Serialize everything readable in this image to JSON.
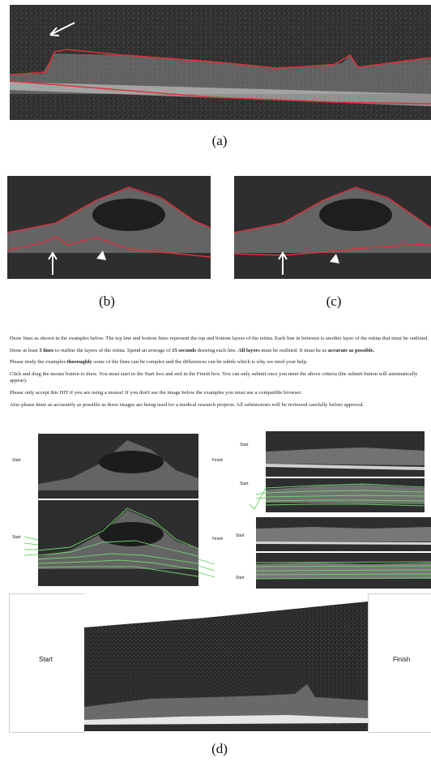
{
  "panels": {
    "a": {
      "caption": "(a)"
    },
    "b": {
      "caption": "(b)"
    },
    "c": {
      "caption": "(c)"
    },
    "d": {
      "caption": "(d)"
    }
  },
  "instructions": {
    "line1": "Draw lines as shown in the examples below. The top line and bottom lines represent the top and bottom layers of the retina. Each line in between is another layer of the retina that must be outlined.",
    "line2_pre": "Draw at least ",
    "line2_b1": "5 lines",
    "line2_mid1": " to outline the layers of the retina. Spend an average of ",
    "line2_b2": "15 seconds",
    "line2_mid2": " drawing each line. ",
    "line2_b3": "All layers",
    "line2_mid3": " must be outlined. It must be as ",
    "line2_b4": "accurate as possible.",
    "line3_pre": "Please study the examples ",
    "line3_b": "thoroughly",
    "line3_post": " some of the lines can be complex and the differences can be subtle which is why we need your help.",
    "line4": "Click and drag the mouse button to draw. You must start in the Start box and end in the Finish box. You can only submit once you meet the above criteria (the submit button will automatically appear).",
    "line5": "Please only accept this HIT if you are using a mouse! If you don't see the image below the examples you must use a compatible browser.",
    "line6": "Also please draw as accurately as possible as these images are being used for a medical research projects. All submissions will be reviewed carefully before approval."
  },
  "examples": {
    "start": "Start",
    "finish": "Finish"
  },
  "drawing": {
    "start": "Start",
    "finish": "Finish"
  },
  "colors": {
    "segmentation_red": "#e0303a",
    "annotation_green": "#6fd26a",
    "arrow_white": "#ffffff"
  }
}
